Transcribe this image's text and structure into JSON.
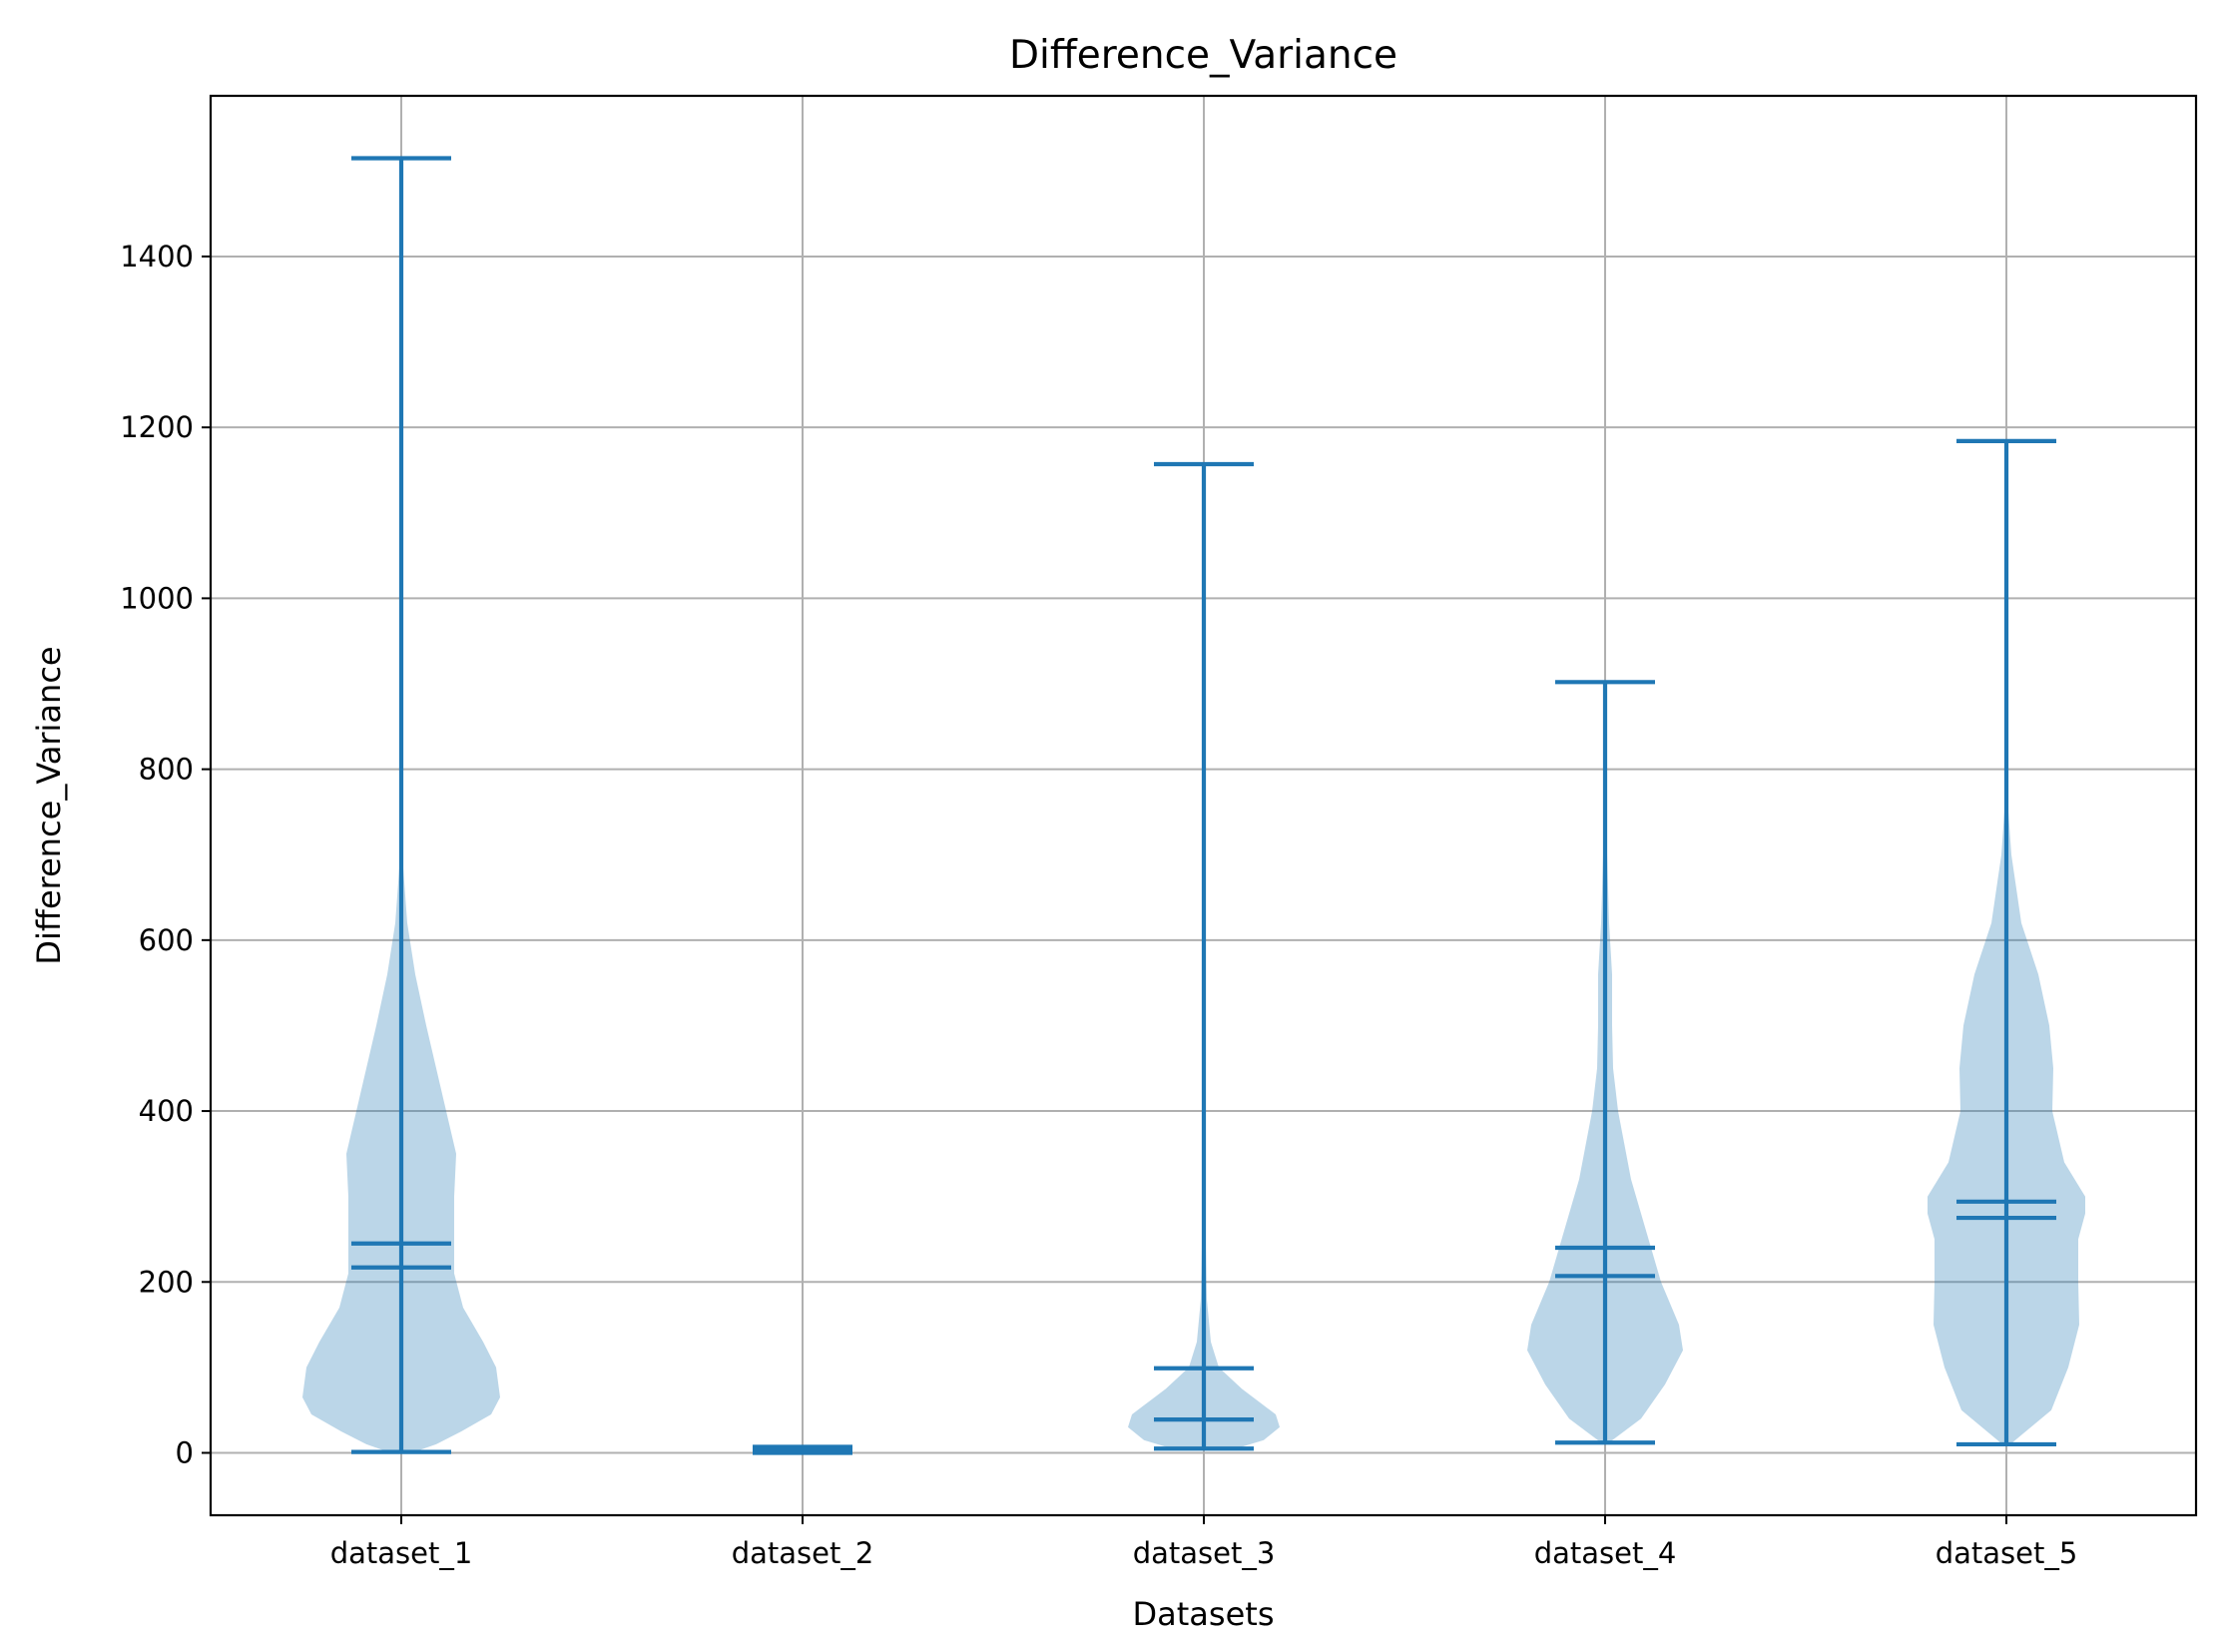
{
  "chart_data": {
    "type": "violin",
    "title": "Difference_Variance",
    "xlabel": "Datasets",
    "ylabel": "Difference_Variance",
    "ylim": [
      -73,
      1588
    ],
    "yticks": [
      0,
      200,
      400,
      600,
      800,
      1000,
      1200,
      1400
    ],
    "grid": true,
    "color": "#1f77b4",
    "categories": [
      "dataset_1",
      "dataset_2",
      "dataset_3",
      "dataset_4",
      "dataset_5"
    ],
    "series": [
      {
        "name": "dataset_1",
        "min": 1,
        "max": 1515,
        "mean": 245,
        "median": 217,
        "density": [
          [
            1,
            0.13
          ],
          [
            10,
            0.35
          ],
          [
            25,
            0.6
          ],
          [
            45,
            0.9
          ],
          [
            65,
            0.99
          ],
          [
            100,
            0.95
          ],
          [
            130,
            0.82
          ],
          [
            170,
            0.62
          ],
          [
            210,
            0.53
          ],
          [
            260,
            0.53
          ],
          [
            300,
            0.53
          ],
          [
            350,
            0.55
          ],
          [
            400,
            0.45
          ],
          [
            450,
            0.35
          ],
          [
            500,
            0.25
          ],
          [
            560,
            0.14
          ],
          [
            620,
            0.06
          ],
          [
            700,
            0.01
          ],
          [
            1515,
            0
          ]
        ]
      },
      {
        "name": "dataset_2",
        "min": 0,
        "max": 7,
        "mean": 4,
        "median": 3,
        "density": [
          [
            0,
            0.25
          ],
          [
            3,
            0.5
          ],
          [
            7,
            0.2
          ]
        ]
      },
      {
        "name": "dataset_3",
        "min": 5,
        "max": 1157,
        "mean": 99,
        "median": 39,
        "density": [
          [
            5,
            0.32
          ],
          [
            15,
            0.6
          ],
          [
            30,
            0.76
          ],
          [
            45,
            0.72
          ],
          [
            60,
            0.55
          ],
          [
            75,
            0.38
          ],
          [
            100,
            0.15
          ],
          [
            130,
            0.07
          ],
          [
            180,
            0.03
          ],
          [
            300,
            0.01
          ],
          [
            450,
            0.005
          ],
          [
            1157,
            0
          ]
        ]
      },
      {
        "name": "dataset_4",
        "min": 12,
        "max": 902,
        "mean": 240,
        "median": 207,
        "density": [
          [
            12,
            0.04
          ],
          [
            40,
            0.36
          ],
          [
            80,
            0.6
          ],
          [
            120,
            0.78
          ],
          [
            150,
            0.74
          ],
          [
            200,
            0.56
          ],
          [
            260,
            0.41
          ],
          [
            320,
            0.26
          ],
          [
            400,
            0.13
          ],
          [
            450,
            0.08
          ],
          [
            500,
            0.07
          ],
          [
            560,
            0.07
          ],
          [
            620,
            0.04
          ],
          [
            700,
            0.02
          ],
          [
            800,
            0.005
          ],
          [
            902,
            0
          ]
        ]
      },
      {
        "name": "dataset_5",
        "min": 10,
        "max": 1184,
        "mean": 294,
        "median": 275,
        "density": [
          [
            10,
            0.04
          ],
          [
            50,
            0.45
          ],
          [
            100,
            0.62
          ],
          [
            150,
            0.73
          ],
          [
            200,
            0.72
          ],
          [
            250,
            0.72
          ],
          [
            280,
            0.79
          ],
          [
            300,
            0.79
          ],
          [
            340,
            0.58
          ],
          [
            400,
            0.46
          ],
          [
            450,
            0.47
          ],
          [
            500,
            0.43
          ],
          [
            560,
            0.32
          ],
          [
            620,
            0.15
          ],
          [
            700,
            0.05
          ],
          [
            750,
            0.02
          ],
          [
            850,
            0.005
          ],
          [
            1184,
            0
          ]
        ]
      }
    ]
  }
}
